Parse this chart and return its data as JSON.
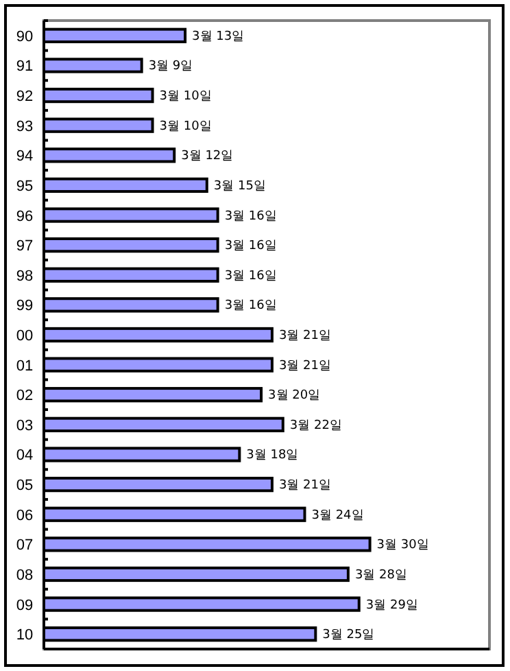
{
  "chart_data": {
    "type": "bar",
    "orientation": "horizontal",
    "color": "#9999ff",
    "categories": [
      "90",
      "91",
      "92",
      "93",
      "94",
      "95",
      "96",
      "97",
      "98",
      "99",
      "00",
      "01",
      "02",
      "03",
      "04",
      "05",
      "06",
      "07",
      "08",
      "09",
      "10"
    ],
    "values": [
      13,
      9,
      10,
      10,
      12,
      15,
      16,
      16,
      16,
      16,
      21,
      21,
      20,
      22,
      18,
      21,
      24,
      30,
      28,
      29,
      25
    ],
    "value_labels": [
      "3월 13일",
      "3월 9일",
      "3월 10일",
      "3월 10일",
      "3월 12일",
      "3월 15일",
      "3월 16일",
      "3월 16일",
      "3월 16일",
      "3월 16일",
      "3월 21일",
      "3월 21일",
      "3월 20일",
      "3월 22일",
      "3월 18일",
      "3월 21일",
      "3월 24일",
      "3월 30일",
      "3월 28일",
      "3월 29일",
      "3월 25일"
    ],
    "xlim": [
      0,
      41
    ]
  }
}
